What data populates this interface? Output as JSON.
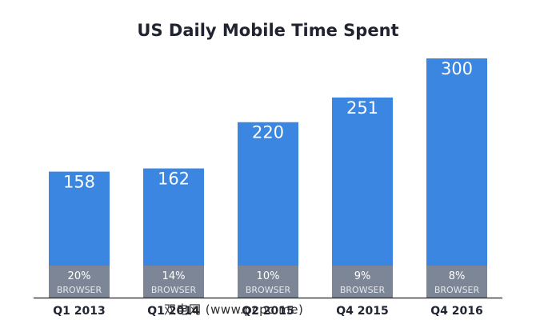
{
  "chart_data": {
    "type": "bar",
    "title": "US Daily Mobile Time Spent",
    "categories": [
      "Q1 2013",
      "Q1 2014",
      "Q2 2015",
      "Q4 2015",
      "Q4 2016"
    ],
    "series": [
      {
        "values": [
          158,
          162,
          220,
          251,
          300
        ]
      },
      {
        "name": "BROWSER",
        "values": [
          "20%",
          "14%",
          "10%",
          "9%",
          "8%"
        ]
      }
    ],
    "ylim": [
      0,
      300
    ],
    "grid": false,
    "colors": {
      "total": "#3a86e0",
      "browser": "#7d8696",
      "axis": "#222222"
    }
  },
  "watermark": "双电网 (www.pcpc.me)"
}
